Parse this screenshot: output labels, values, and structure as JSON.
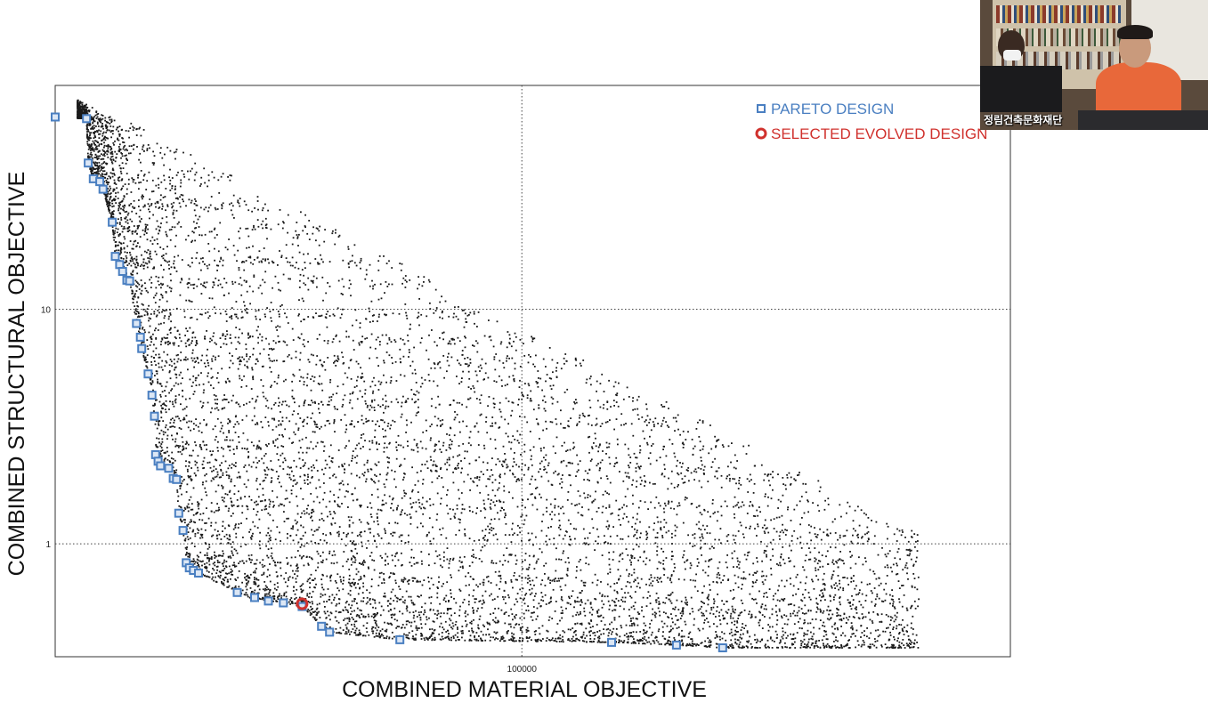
{
  "chart_data": {
    "type": "scatter",
    "title": "",
    "xlabel": "COMBINED MATERIAL OBJECTIVE",
    "ylabel": "COMBINED STRUCTURAL OBJECTIVE",
    "xscale": "log",
    "yscale": "log",
    "xlim": [
      10300,
      1080000
    ],
    "ylim": [
      0.33,
      90
    ],
    "x_ticks": [
      {
        "value": 100000,
        "label": "100000"
      }
    ],
    "y_ticks": [
      {
        "value": 1,
        "label": "1"
      },
      {
        "value": 10,
        "label": "10"
      }
    ],
    "grid": "dotted at labeled ticks",
    "legend": {
      "position": "top-right",
      "entries": [
        {
          "label": "PARETO DESIGN",
          "marker": "square",
          "color": "#4a7fc1"
        },
        {
          "label": "SELECTED EVOLVED DESIGN",
          "marker": "ring",
          "color": "#d0312d"
        }
      ]
    },
    "series": [
      {
        "name": "PARETO DESIGN",
        "marker": "square",
        "color": "#4a7fc1",
        "points": [
          [
            10300,
            66
          ],
          [
            12000,
            65
          ],
          [
            12100,
            42
          ],
          [
            12400,
            36
          ],
          [
            12800,
            35
          ],
          [
            13000,
            32.5
          ],
          [
            13600,
            23.5
          ],
          [
            13800,
            16.8
          ],
          [
            14100,
            15.5
          ],
          [
            14300,
            14.5
          ],
          [
            14600,
            13.3
          ],
          [
            14800,
            13.2
          ],
          [
            15300,
            8.7
          ],
          [
            15600,
            7.6
          ],
          [
            15700,
            6.8
          ],
          [
            16200,
            5.3
          ],
          [
            16500,
            4.3
          ],
          [
            16700,
            3.5
          ],
          [
            16800,
            2.4
          ],
          [
            17000,
            2.25
          ],
          [
            17200,
            2.15
          ],
          [
            17900,
            2.1
          ],
          [
            18300,
            1.9
          ],
          [
            18600,
            1.88
          ],
          [
            18800,
            1.35
          ],
          [
            19200,
            1.14
          ],
          [
            19500,
            0.83
          ],
          [
            19800,
            0.79
          ],
          [
            20200,
            0.77
          ],
          [
            20700,
            0.75
          ],
          [
            25000,
            0.62
          ],
          [
            27200,
            0.59
          ],
          [
            29100,
            0.57
          ],
          [
            31300,
            0.56
          ],
          [
            34300,
            0.54
          ],
          [
            37700,
            0.445
          ],
          [
            39200,
            0.42
          ],
          [
            55200,
            0.39
          ],
          [
            154800,
            0.38
          ],
          [
            212400,
            0.37
          ],
          [
            266000,
            0.36
          ]
        ]
      },
      {
        "name": "SELECTED EVOLVED DESIGN",
        "marker": "ring",
        "color": "#d0312d",
        "points": [
          [
            34300,
            0.555
          ]
        ]
      },
      {
        "name": "",
        "marker": "dot",
        "color": "#1a1a1a",
        "description_density": "dense cloud above the Pareto front, densest near the front, thinning toward upper right; count approx 9000",
        "count": 9000
      }
    ]
  },
  "video": {
    "caption": "정림건축문화재단"
  }
}
